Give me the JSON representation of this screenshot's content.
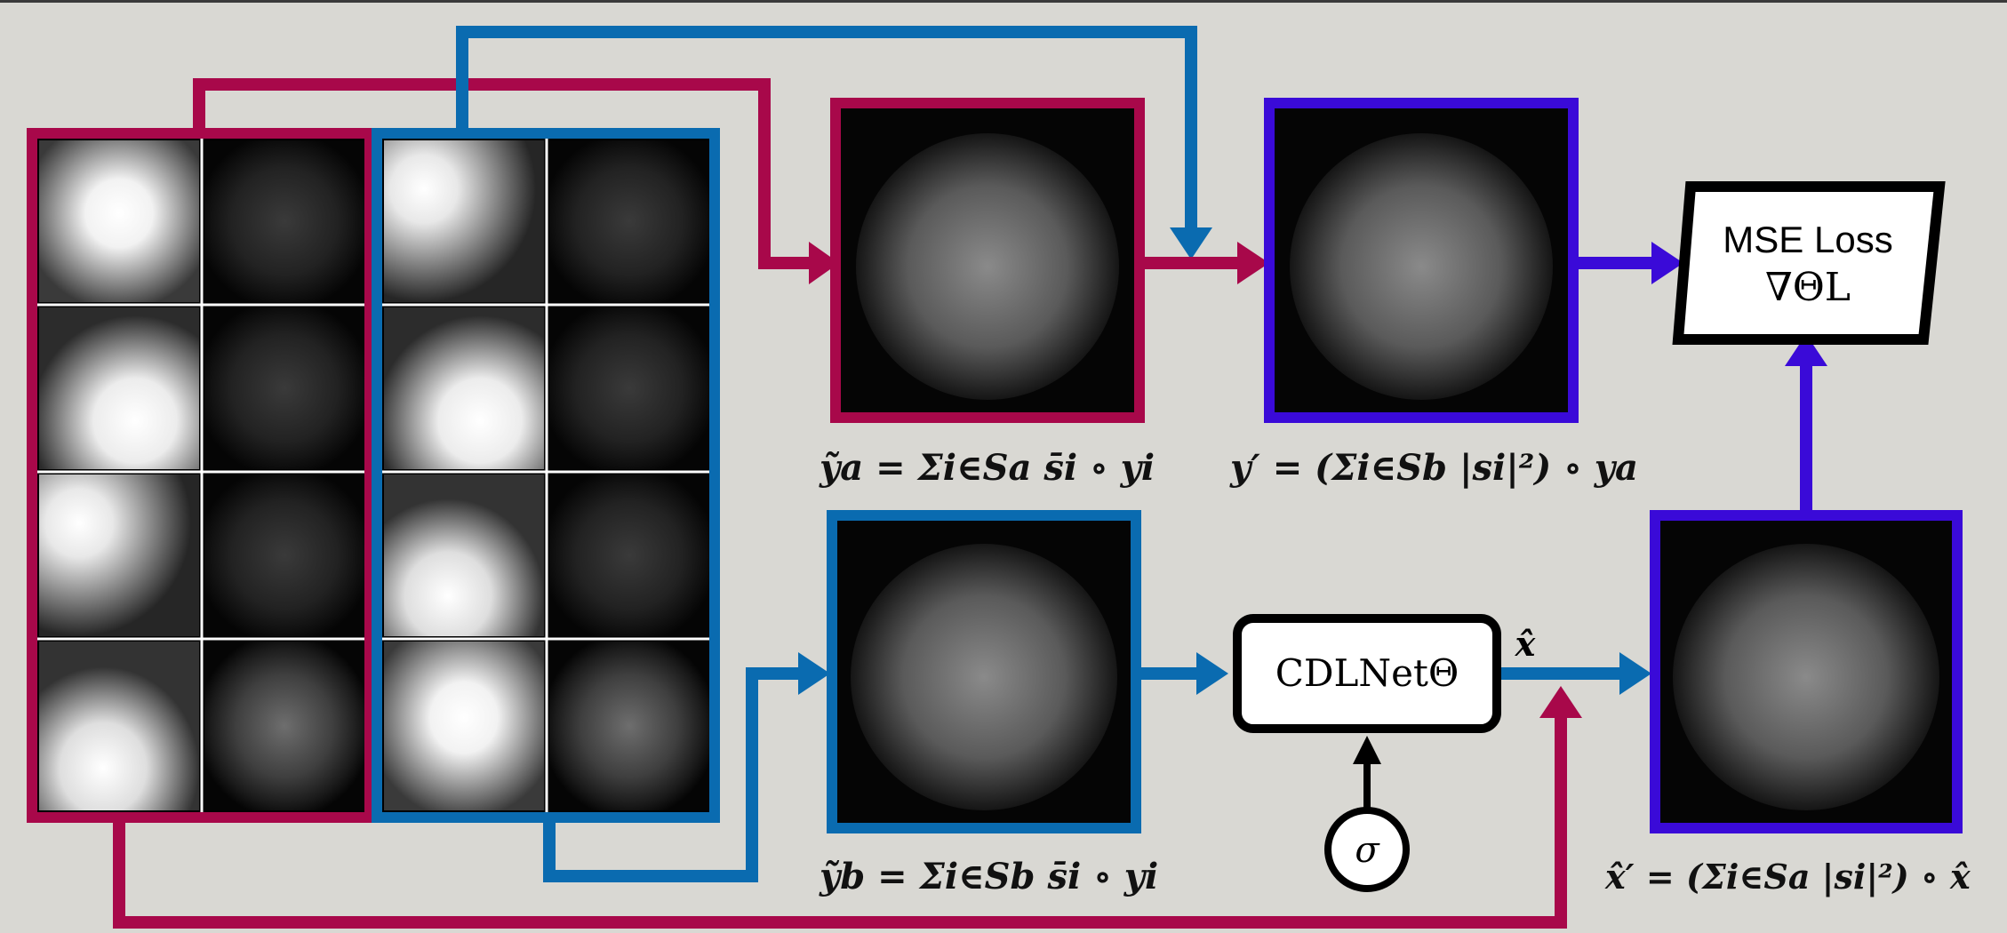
{
  "colors": {
    "background": "#d9d8d3",
    "group_a": "#a8084a",
    "group_b": "#0a6bb0",
    "purple": "#3a0ad8",
    "black": "#000000"
  },
  "nodes": {
    "mse_loss": {
      "line1": "MSE Loss",
      "line2": "∇ΘL"
    },
    "cdlnet": {
      "label": "CDLNetΘ"
    },
    "sigma": {
      "label": "σ"
    },
    "xhat_edge_label": "x̂"
  },
  "equations": {
    "ya": "ỹa = Σi∈Sa s̄i ∘ yi",
    "yprime": "y′ = (Σi∈Sb |si|²) ∘ ya",
    "yb": "ỹb = Σi∈Sb s̄i ∘ yi",
    "xhatprime": "x̂′ = (Σi∈Sa |si|²) ∘ x̂"
  },
  "icons": {
    "arrow": "arrow-head-icon"
  }
}
